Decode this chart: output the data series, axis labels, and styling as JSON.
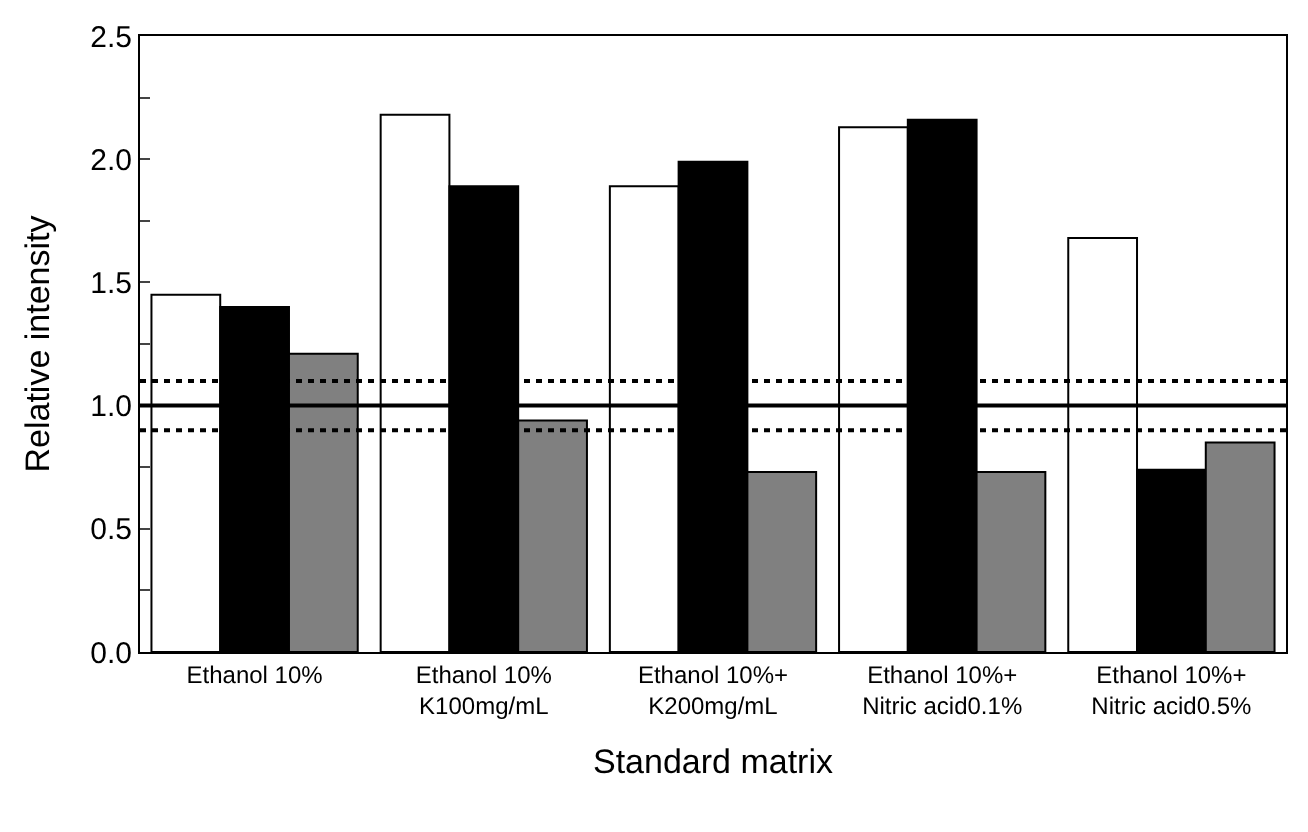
{
  "chart_data": {
    "type": "bar",
    "xlabel": "Standard matrix",
    "ylabel": "Relative intensity",
    "categories": [
      "Ethanol 10%",
      "Ethanol 10%\nK100mg/mL",
      "Ethanol 10%+\nK200mg/mL",
      "Ethanol 10%+\nNitric acid0.1%",
      "Ethanol 10%+\nNitric acid0.5%"
    ],
    "series": [
      {
        "color": "#ffffff",
        "values": [
          1.45,
          2.18,
          1.89,
          2.13,
          1.68
        ]
      },
      {
        "color": "#000000",
        "values": [
          1.4,
          1.89,
          1.99,
          2.16,
          0.74
        ]
      },
      {
        "color": "#808080",
        "values": [
          1.21,
          0.94,
          0.73,
          0.73,
          0.85
        ]
      }
    ],
    "ylim": [
      0,
      2.5
    ],
    "yticks": [
      {
        "value": 0,
        "label": "0.0"
      },
      {
        "value": 0.25,
        "label": null
      },
      0.5,
      {
        "value": 0.75,
        "label": null
      },
      {
        "value": 1,
        "label": "1.0"
      },
      {
        "value": 1.25,
        "label": null
      },
      1.5,
      {
        "value": 1.75,
        "label": null
      },
      {
        "value": 2,
        "label": "2.0"
      },
      {
        "value": 2.25,
        "label": null
      },
      2.5
    ],
    "ref_lines": [
      {
        "axis": "y",
        "value": 1.0,
        "label": null,
        "color": "#000000",
        "line_style": "solid"
      },
      {
        "axis": "y",
        "value": 1.1,
        "label": null,
        "color": "#000000",
        "line_style": "dotted"
      },
      {
        "axis": "y",
        "value": 0.9,
        "label": null,
        "color": "#000000",
        "line_style": "dotted"
      }
    ]
  }
}
